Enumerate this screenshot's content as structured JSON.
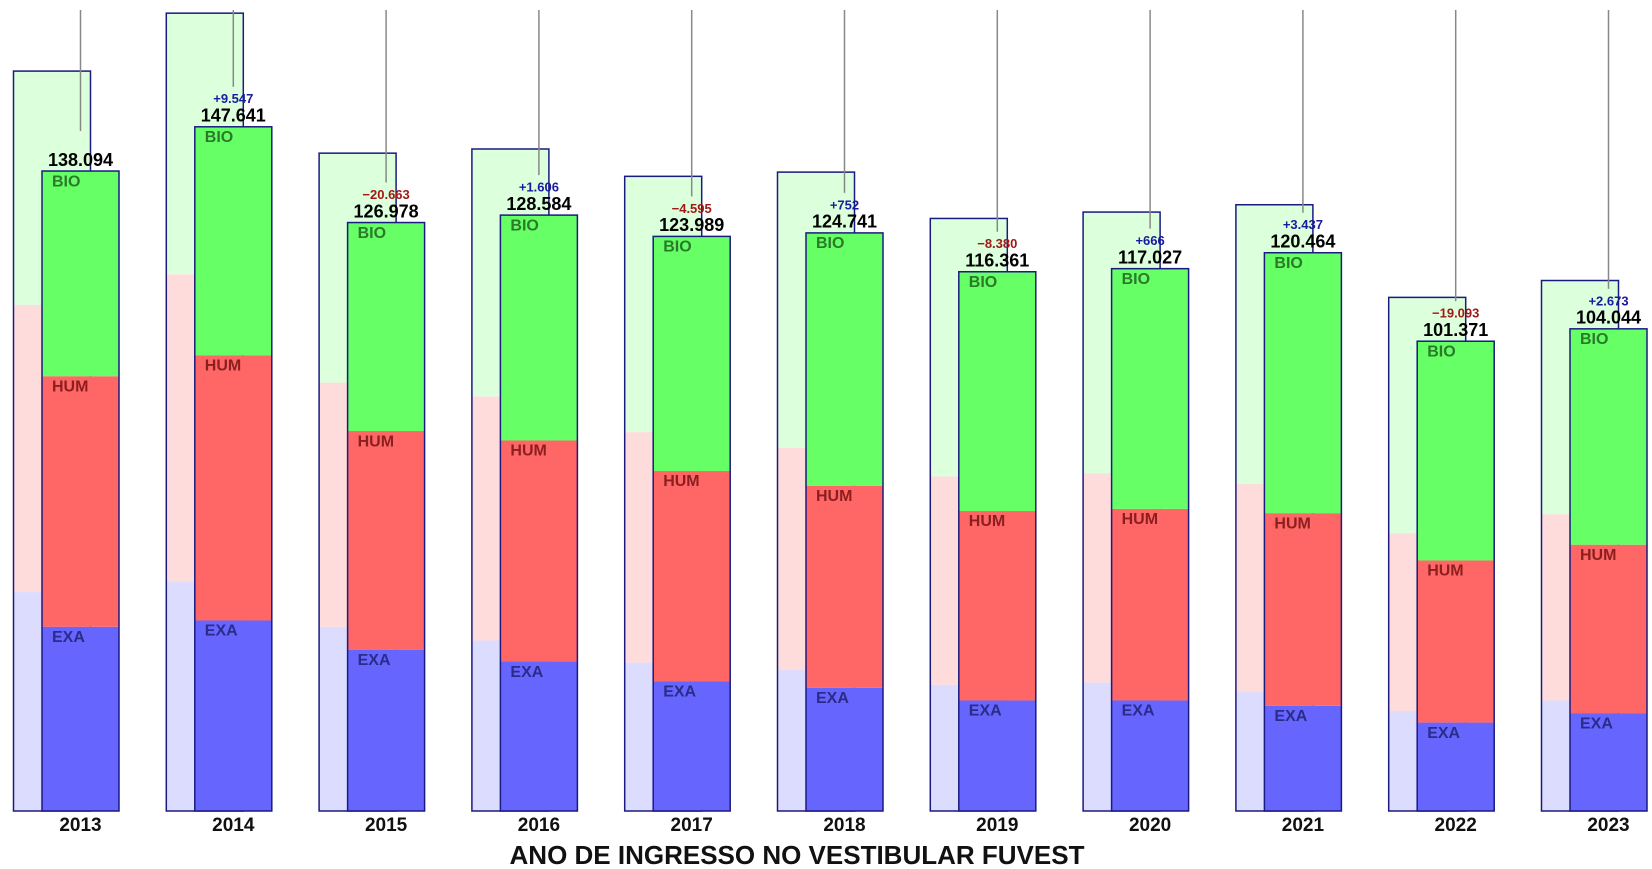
{
  "chart_data": {
    "type": "stacked-bar",
    "x_label": "ANO DE INGRESSO NO VESTIBULAR FUVEST",
    "categories": [
      "2013",
      "2014",
      "2015",
      "2016",
      "2017",
      "2018",
      "2019",
      "2020",
      "2021",
      "2022",
      "2023"
    ],
    "series": [
      {
        "name": "EXA",
        "color": "#6666ff",
        "background_color": "#dcdcff",
        "values": [
          39750,
          41110,
          34750,
          32250,
          27940,
          26570,
          23850,
          23850,
          22710,
          19080,
          21120
        ],
        "background_values": [
          47240,
          49510,
          39750,
          36790,
          32020,
          30430,
          27250,
          27710,
          25660,
          21580,
          23850
        ]
      },
      {
        "name": "HUM",
        "color": "#ff6666",
        "background_color": "#ffdcdc",
        "values": [
          54060,
          57230,
          47240,
          47700,
          45420,
          43610,
          40880,
          41340,
          41560,
          34980,
          36340
        ],
        "background_values": [
          62000,
          66320,
          52690,
          52690,
          49740,
          47920,
          44970,
          45200,
          44970,
          38380,
          40200
        ]
      },
      {
        "name": "BIO",
        "color": "#66ff66",
        "background_color": "#dcffdc",
        "values": [
          44284,
          49301,
          44988,
          48634,
          50629,
          54561,
          51631,
          51837,
          56194,
          47311,
          46584
        ],
        "background_values": [
          50420,
          56330,
          49510,
          53370,
          55190,
          59510,
          55640,
          56330,
          60190,
          50870,
          50420
        ]
      }
    ],
    "totals": {
      "values": [
        138094,
        147641,
        126978,
        128584,
        123989,
        124741,
        116361,
        117027,
        120464,
        101371,
        104044
      ],
      "value_labels": [
        "138.094",
        "147.641",
        "126.978",
        "128.584",
        "123.989",
        "124.741",
        "116.361",
        "117.027",
        "120.464",
        "101.371",
        "104.044"
      ]
    },
    "deltas": {
      "values": [
        null,
        9547,
        -20663,
        1606,
        -4595,
        752,
        -8380,
        666,
        3437,
        -19093,
        2673
      ],
      "value_labels": [
        null,
        "+9.547",
        "−20.663",
        "+1.606",
        "−4.595",
        "+752",
        "−8.380",
        "+666",
        "+3.437",
        "−19.093",
        "+2.673"
      ]
    },
    "ylim": [
      0,
      175000
    ],
    "outline_color": "#1a1a80"
  }
}
